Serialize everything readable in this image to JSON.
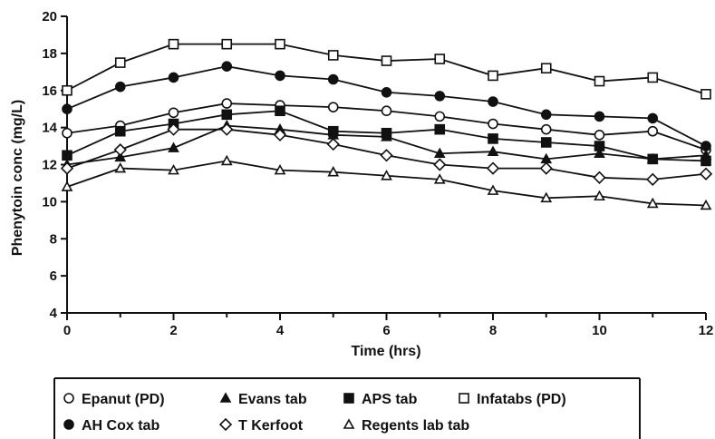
{
  "chart_data": {
    "type": "line",
    "title": "",
    "xlabel": "Time (hrs)",
    "ylabel": "Phenytoin conc (mg/L)",
    "xlim": [
      0,
      12
    ],
    "ylim": [
      4,
      20
    ],
    "x_ticks": [
      0,
      2,
      4,
      6,
      8,
      10,
      12
    ],
    "y_ticks": [
      4,
      6,
      8,
      10,
      12,
      14,
      16,
      18,
      20
    ],
    "grid": false,
    "legend_position": "bottom",
    "x": [
      0,
      1,
      2,
      3,
      4,
      5,
      6,
      7,
      8,
      9,
      10,
      11,
      12
    ],
    "series": [
      {
        "name": "Epanut (PD)",
        "marker": "open-circle",
        "values": [
          13.7,
          14.1,
          14.8,
          15.3,
          15.2,
          15.1,
          14.9,
          14.6,
          14.2,
          13.9,
          13.6,
          13.8,
          12.8
        ]
      },
      {
        "name": "Evans tab",
        "marker": "filled-triangle",
        "values": [
          12.0,
          12.4,
          12.9,
          14.1,
          13.9,
          13.6,
          13.5,
          12.6,
          12.7,
          12.3,
          12.6,
          12.3,
          12.5
        ]
      },
      {
        "name": "APS tab",
        "marker": "filled-square",
        "values": [
          12.5,
          13.8,
          14.2,
          14.7,
          14.9,
          13.8,
          13.7,
          13.9,
          13.4,
          13.2,
          13.0,
          12.3,
          12.2
        ]
      },
      {
        "name": "Infatabs (PD)",
        "marker": "open-square",
        "values": [
          16.0,
          17.5,
          18.5,
          18.5,
          18.5,
          17.9,
          17.6,
          17.7,
          16.8,
          17.2,
          16.5,
          16.7,
          15.8
        ]
      },
      {
        "name": "AH Cox tab",
        "marker": "filled-circle",
        "values": [
          15.0,
          16.2,
          16.7,
          17.3,
          16.8,
          16.6,
          15.9,
          15.7,
          15.4,
          14.7,
          14.6,
          14.5,
          13.0
        ]
      },
      {
        "name": "T Kerfoot",
        "marker": "open-diamond",
        "values": [
          11.8,
          12.8,
          13.9,
          13.9,
          13.6,
          13.1,
          12.5,
          12.0,
          11.8,
          11.8,
          11.3,
          11.2,
          11.5
        ]
      },
      {
        "name": "Regents lab tab",
        "marker": "open-triangle",
        "values": [
          10.8,
          11.8,
          11.7,
          12.2,
          11.7,
          11.6,
          11.4,
          11.2,
          10.6,
          10.2,
          10.3,
          9.9,
          9.8
        ]
      }
    ]
  }
}
